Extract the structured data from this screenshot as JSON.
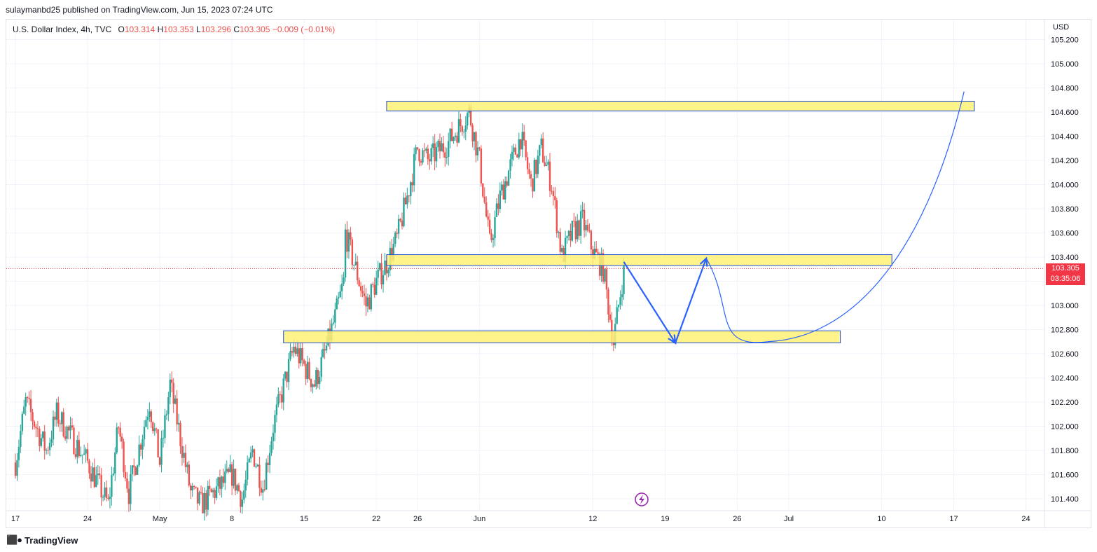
{
  "header": {
    "published": "sulaymanbd25 published on TradingView.com, Jun 15, 2023 07:24 UTC"
  },
  "legend": {
    "symbol": "U.S. Dollar Index, 4h, TVC",
    "o_label": "O",
    "o_value": "103.314",
    "h_label": "H",
    "h_value": "103.353",
    "l_label": "L",
    "l_value": "103.296",
    "c_label": "C",
    "c_value": "103.305",
    "change": "−0.009 (−0.01%)"
  },
  "price_axis": {
    "currency": "USD",
    "current_price": "103.305",
    "countdown": "03:35:06"
  },
  "footer": {
    "brand": "TradingView",
    "logo_icon": "tradingview-logo-icon"
  },
  "colors": {
    "up": "#26a69a",
    "down": "#ef5350",
    "zone_fill": "#fff176",
    "zone_border": "#1e4fd6",
    "projection": "#2962ff",
    "current_line": "#f23645"
  },
  "chart_data": {
    "type": "candlestick",
    "timeframe": "4h",
    "ylim": [
      101.3,
      105.3
    ],
    "y_ticks": [
      101.4,
      101.6,
      101.8,
      102.0,
      102.2,
      102.4,
      102.6,
      102.8,
      103.0,
      103.2,
      103.4,
      103.6,
      103.8,
      104.0,
      104.2,
      104.4,
      104.6,
      104.8,
      105.0,
      105.2
    ],
    "y_tick_labels": [
      "101.400",
      "101.600",
      "101.800",
      "102.000",
      "102.200",
      "102.400",
      "102.600",
      "102.800",
      "103.000",
      "103.200",
      "103.400",
      "103.600",
      "103.800",
      "104.000",
      "104.200",
      "104.400",
      "104.600",
      "104.800",
      "105.000",
      "105.200"
    ],
    "x_tick_labels": [
      "17",
      "24",
      "May",
      "8",
      "15",
      "22",
      "26",
      "Jun",
      "12",
      "19",
      "26",
      "Jul",
      "10",
      "17",
      "24"
    ],
    "x_tick_dates": [
      "2023-04-17",
      "2023-04-24",
      "2023-05-01",
      "2023-05-08",
      "2023-05-15",
      "2023-05-22",
      "2023-05-26",
      "2023-06-01",
      "2023-06-12",
      "2023-06-19",
      "2023-06-26",
      "2023-07-01",
      "2023-07-10",
      "2023-07-17",
      "2023-07-24"
    ],
    "price_path": [
      [
        "2023-04-17",
        101.7
      ],
      [
        "2023-04-18",
        102.2
      ],
      [
        "2023-04-20",
        101.8
      ],
      [
        "2023-04-21",
        102.1
      ],
      [
        "2023-04-24",
        101.7
      ],
      [
        "2023-04-26",
        101.35
      ],
      [
        "2023-04-27",
        102.0
      ],
      [
        "2023-04-28",
        101.45
      ],
      [
        "2023-04-30",
        102.2
      ],
      [
        "2023-05-01",
        101.7
      ],
      [
        "2023-05-02",
        102.35
      ],
      [
        "2023-05-03",
        101.9
      ],
      [
        "2023-05-04",
        101.45
      ],
      [
        "2023-05-05",
        101.35
      ],
      [
        "2023-05-08",
        101.6
      ],
      [
        "2023-05-09",
        101.4
      ],
      [
        "2023-05-10",
        101.8
      ],
      [
        "2023-05-11",
        101.5
      ],
      [
        "2023-05-12",
        102.0
      ],
      [
        "2023-05-14",
        102.65
      ],
      [
        "2023-05-15",
        102.5
      ],
      [
        "2023-05-16",
        102.35
      ],
      [
        "2023-05-17",
        102.6
      ],
      [
        "2023-05-18",
        102.9
      ],
      [
        "2023-05-19",
        103.25
      ],
      [
        "2023-05-19",
        103.6
      ],
      [
        "2023-05-21",
        103.0
      ],
      [
        "2023-05-22",
        103.2
      ],
      [
        "2023-05-23",
        103.35
      ],
      [
        "2023-05-24",
        103.55
      ],
      [
        "2023-05-25",
        103.9
      ],
      [
        "2023-05-26",
        104.3
      ],
      [
        "2023-05-27",
        104.2
      ],
      [
        "2023-05-29",
        104.35
      ],
      [
        "2023-05-31",
        104.6
      ],
      [
        "2023-06-01",
        104.2
      ],
      [
        "2023-06-02",
        103.5
      ],
      [
        "2023-06-03",
        103.9
      ],
      [
        "2023-06-05",
        104.4
      ],
      [
        "2023-06-06",
        104.0
      ],
      [
        "2023-06-07",
        104.3
      ],
      [
        "2023-06-08",
        104.0
      ],
      [
        "2023-06-09",
        103.4
      ],
      [
        "2023-06-10",
        103.6
      ],
      [
        "2023-06-11",
        103.7
      ],
      [
        "2023-06-12",
        103.45
      ],
      [
        "2023-06-13",
        103.3
      ],
      [
        "2023-06-14",
        102.7
      ],
      [
        "2023-06-15",
        103.3
      ]
    ],
    "zones": [
      {
        "from": "2023-05-23",
        "to": "2023-07-19",
        "low": 104.61,
        "high": 104.69
      },
      {
        "from": "2023-05-23",
        "to": "2023-07-11",
        "low": 103.33,
        "high": 103.42
      },
      {
        "from": "2023-05-13",
        "to": "2023-07-06",
        "low": 102.69,
        "high": 102.79
      }
    ],
    "projection": [
      {
        "date": "2023-06-15",
        "price": 103.36
      },
      {
        "date": "2023-06-20",
        "price": 102.69
      },
      {
        "date": "2023-06-23",
        "price": 103.39
      },
      {
        "date": "2023-06-29",
        "price": 102.7
      },
      {
        "date": "2023-07-18",
        "price": 104.77
      }
    ],
    "current_price": 103.305,
    "grid": true
  }
}
